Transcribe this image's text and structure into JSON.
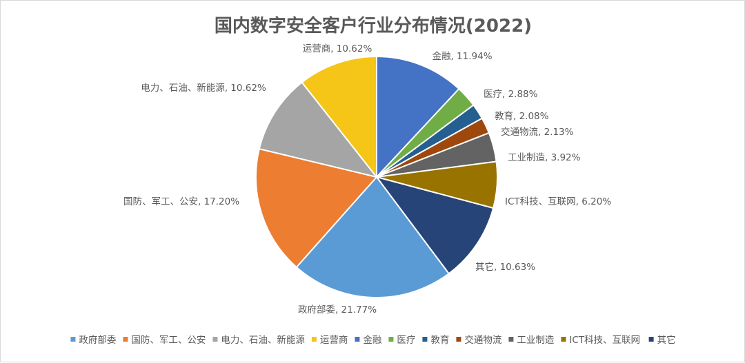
{
  "chart_data": {
    "type": "pie",
    "title": "国内数字安全客户行业分布情况(2022)",
    "slices": [
      {
        "name": "政府部委",
        "value": 21.77,
        "label": "政府部委, 21.77%",
        "color": "#5b9bd5"
      },
      {
        "name": "国防、军工、公安",
        "value": 17.2,
        "label": "国防、军工、公安, 17.20%",
        "color": "#ed7d31"
      },
      {
        "name": "电力、石油、新能源",
        "value": 10.62,
        "label": "电力、石油、新能源, 10.62%",
        "color": "#a5a5a5"
      },
      {
        "name": "运营商",
        "value": 10.62,
        "label": "运营商, 10.62%",
        "color": "#f5c518"
      },
      {
        "name": "金融",
        "value": 11.94,
        "label": "金融, 11.94%",
        "color": "#4472c4"
      },
      {
        "name": "医疗",
        "value": 2.88,
        "label": "医疗, 2.88%",
        "color": "#70ad47"
      },
      {
        "name": "教育",
        "value": 2.08,
        "label": "教育, 2.08%",
        "color": "#255e91"
      },
      {
        "name": "交通物流",
        "value": 2.13,
        "label": "交通物流, 2.13%",
        "color": "#9e480e"
      },
      {
        "name": "工业制造",
        "value": 3.92,
        "label": "工业制造, 3.92%",
        "color": "#636363"
      },
      {
        "name": "ICT科技、互联网",
        "value": 6.2,
        "label": "ICT科技、互联网, 6.20%",
        "color": "#997300"
      },
      {
        "name": "其它",
        "value": 10.63,
        "label": "其它, 10.63%",
        "color": "#264478"
      }
    ],
    "legend_position": "bottom"
  }
}
